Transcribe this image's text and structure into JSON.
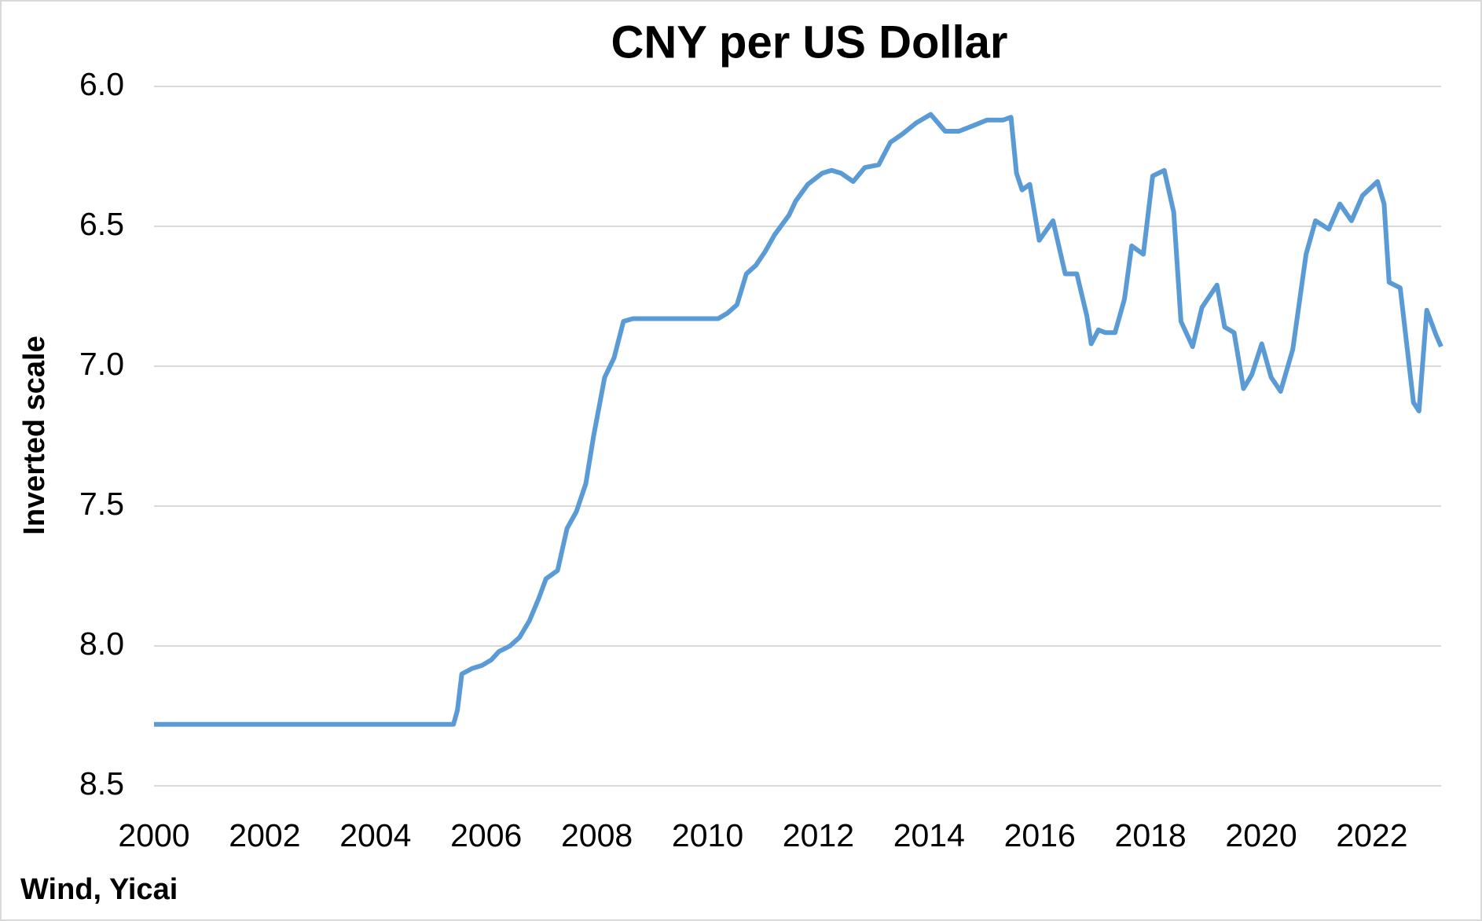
{
  "chart_data": {
    "type": "line",
    "title": "CNY per US Dollar",
    "y_label": "Inverted scale",
    "source": "Wind, Yicai",
    "y_inverted": true,
    "grid": true,
    "xlim": [
      2000,
      2023.25
    ],
    "xticks": [
      2000,
      2002,
      2004,
      2006,
      2008,
      2010,
      2012,
      2014,
      2016,
      2018,
      2020,
      2022
    ],
    "ylim": [
      6,
      8.5
    ],
    "yticks": [
      {
        "value": 6,
        "label": "6.0"
      },
      6.5,
      {
        "value": 7,
        "label": "7.0"
      },
      7.5,
      {
        "value": 8,
        "label": "8.0"
      },
      8.5
    ],
    "x": [
      2000,
      2005.41,
      2005.48,
      2005.56,
      2005.75,
      2005.92,
      2006.09,
      2006.23,
      2006.43,
      2006.6,
      2006.78,
      2006.95,
      2007.08,
      2007.29,
      2007.46,
      2007.63,
      2007.8,
      2007.94,
      2008.14,
      2008.31,
      2008.48,
      2008.65,
      2008.82,
      2009.17,
      2009.51,
      2010.19,
      2010.36,
      2010.53,
      2010.7,
      2010.87,
      2011.04,
      2011.21,
      2011.47,
      2011.59,
      2011.81,
      2012.07,
      2012.24,
      2012.41,
      2012.63,
      2012.84,
      2013.09,
      2013.3,
      2013.52,
      2013.77,
      2014.03,
      2014.29,
      2014.54,
      2014.8,
      2015.05,
      2015.34,
      2015.48,
      2015.58,
      2015.68,
      2015.82,
      2015.99,
      2016.24,
      2016.46,
      2016.67,
      2016.85,
      2016.93,
      2017.06,
      2017.18,
      2017.36,
      2017.53,
      2017.66,
      2017.87,
      2018.04,
      2018.25,
      2018.42,
      2018.55,
      2018.76,
      2018.93,
      2019.2,
      2019.34,
      2019.51,
      2019.68,
      2019.83,
      2020.01,
      2020.18,
      2020.35,
      2020.57,
      2020.81,
      2020.98,
      2021.22,
      2021.42,
      2021.63,
      2021.83,
      2022.1,
      2022.22,
      2022.31,
      2022.51,
      2022.75,
      2022.85,
      2022.99,
      2023.16,
      2023.25
    ],
    "series": [
      {
        "name": "CNY per US Dollar",
        "color": "#5b9bd5",
        "values": [
          8.28,
          8.28,
          8.23,
          8.1,
          8.08,
          8.07,
          8.05,
          8.02,
          8.0,
          7.97,
          7.91,
          7.83,
          7.76,
          7.73,
          7.58,
          7.52,
          7.42,
          7.25,
          7.04,
          6.97,
          6.84,
          6.83,
          6.83,
          6.83,
          6.83,
          6.83,
          6.81,
          6.78,
          6.67,
          6.64,
          6.59,
          6.53,
          6.46,
          6.41,
          6.35,
          6.31,
          6.3,
          6.31,
          6.34,
          6.29,
          6.28,
          6.2,
          6.17,
          6.13,
          6.1,
          6.16,
          6.16,
          6.14,
          6.12,
          6.12,
          6.11,
          6.31,
          6.37,
          6.35,
          6.55,
          6.48,
          6.67,
          6.67,
          6.82,
          6.92,
          6.87,
          6.88,
          6.88,
          6.76,
          6.57,
          6.6,
          6.32,
          6.3,
          6.45,
          6.84,
          6.93,
          6.79,
          6.71,
          6.86,
          6.88,
          7.08,
          7.03,
          6.92,
          7.04,
          7.09,
          6.94,
          6.6,
          6.48,
          6.51,
          6.42,
          6.48,
          6.39,
          6.34,
          6.42,
          6.7,
          6.72,
          7.13,
          7.16,
          6.8,
          6.89,
          6.93
        ]
      }
    ]
  }
}
